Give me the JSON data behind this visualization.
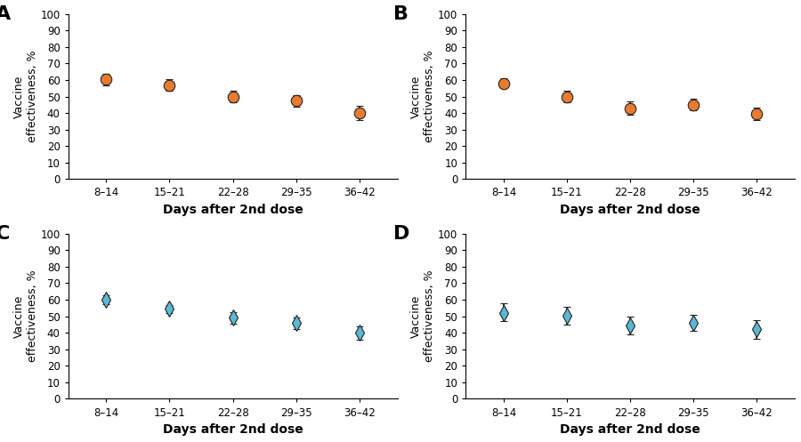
{
  "categories": [
    "8–14",
    "15–21",
    "22–28",
    "29–35",
    "36–42"
  ],
  "xlabel": "Days after 2nd dose",
  "ylabel": "Vaccine\neffectiveness, %",
  "ylim": [
    0,
    100
  ],
  "yticks": [
    0,
    10,
    20,
    30,
    40,
    50,
    60,
    70,
    80,
    90,
    100
  ],
  "panels": {
    "A": {
      "values": [
        60.5,
        57.0,
        50.0,
        47.5,
        40.0
      ],
      "err_lo": [
        3.5,
        3.5,
        3.5,
        3.5,
        4.5
      ],
      "err_hi": [
        3.5,
        3.5,
        3.5,
        3.5,
        4.5
      ],
      "marker": "o",
      "color": "#E87B2E",
      "edgecolor": "#222222"
    },
    "B": {
      "values": [
        58.0,
        50.0,
        43.0,
        45.0,
        39.5
      ],
      "err_lo": [
        3.0,
        3.5,
        4.0,
        3.5,
        4.0
      ],
      "err_hi": [
        3.0,
        3.5,
        4.0,
        3.5,
        4.0
      ],
      "marker": "o",
      "color": "#E87B2E",
      "edgecolor": "#222222"
    },
    "C": {
      "values": [
        60.0,
        54.5,
        49.0,
        46.0,
        40.0
      ],
      "err_lo": [
        2.5,
        2.5,
        3.5,
        3.5,
        4.0
      ],
      "err_hi": [
        2.5,
        2.5,
        3.5,
        3.5,
        4.0
      ],
      "marker": "d",
      "color": "#5BB8D4",
      "edgecolor": "#222222"
    },
    "D": {
      "values": [
        52.0,
        50.5,
        44.5,
        46.0,
        42.0
      ],
      "err_lo": [
        5.0,
        5.5,
        5.5,
        5.0,
        5.5
      ],
      "err_hi": [
        6.0,
        5.0,
        5.5,
        5.0,
        5.5
      ],
      "marker": "d",
      "color": "#5BB8D4",
      "edgecolor": "#222222"
    }
  },
  "panel_label_fontsize": 16,
  "background_color": "#ffffff",
  "markersize_circle": 9,
  "markersize_diamond": 9,
  "capsize": 3,
  "elinewidth": 1.3,
  "capthick": 1.3,
  "markeredgewidth": 0.8
}
